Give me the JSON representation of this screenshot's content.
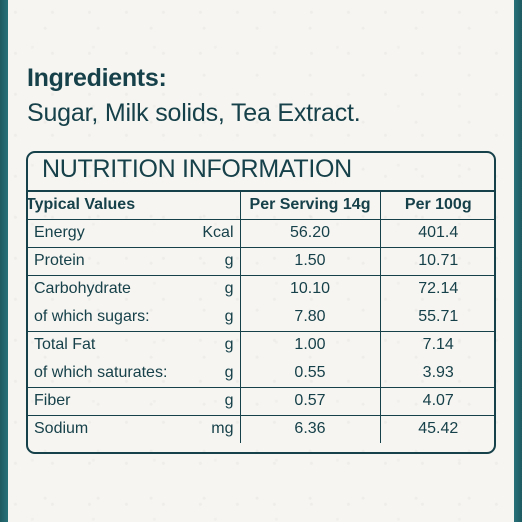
{
  "ingredients": {
    "title": "Ingredients:",
    "text": "Sugar, Milk solids, Tea Extract."
  },
  "nutrition": {
    "title": "NUTRITION INFORMATION",
    "headers": [
      "Typical Values",
      "Per Serving 14g",
      "Per 100g"
    ],
    "rows": [
      {
        "name": "Energy",
        "unit": "Kcal",
        "serving": "56.20",
        "per100": "401.4"
      },
      {
        "name": "Protein",
        "unit": "g",
        "serving": "1.50",
        "per100": "10.71"
      },
      {
        "name": "Carbohydrate",
        "unit": "g",
        "serving": "10.10",
        "per100": "72.14"
      },
      {
        "name": "of which sugars:",
        "unit": "g",
        "serving": "7.80",
        "per100": "55.71"
      },
      {
        "name": "Total Fat",
        "unit": "g",
        "serving": "1.00",
        "per100": "7.14"
      },
      {
        "name": "of which saturates:",
        "unit": "g",
        "serving": "0.55",
        "per100": "3.93"
      },
      {
        "name": "Fiber",
        "unit": "g",
        "serving": "0.57",
        "per100": "4.07"
      },
      {
        "name": "Sodium",
        "unit": "mg",
        "serving": "6.36",
        "per100": "45.42"
      }
    ]
  },
  "colors": {
    "text": "#17414a",
    "border_band": "#2b7880",
    "paper": "#f6f5f1"
  }
}
